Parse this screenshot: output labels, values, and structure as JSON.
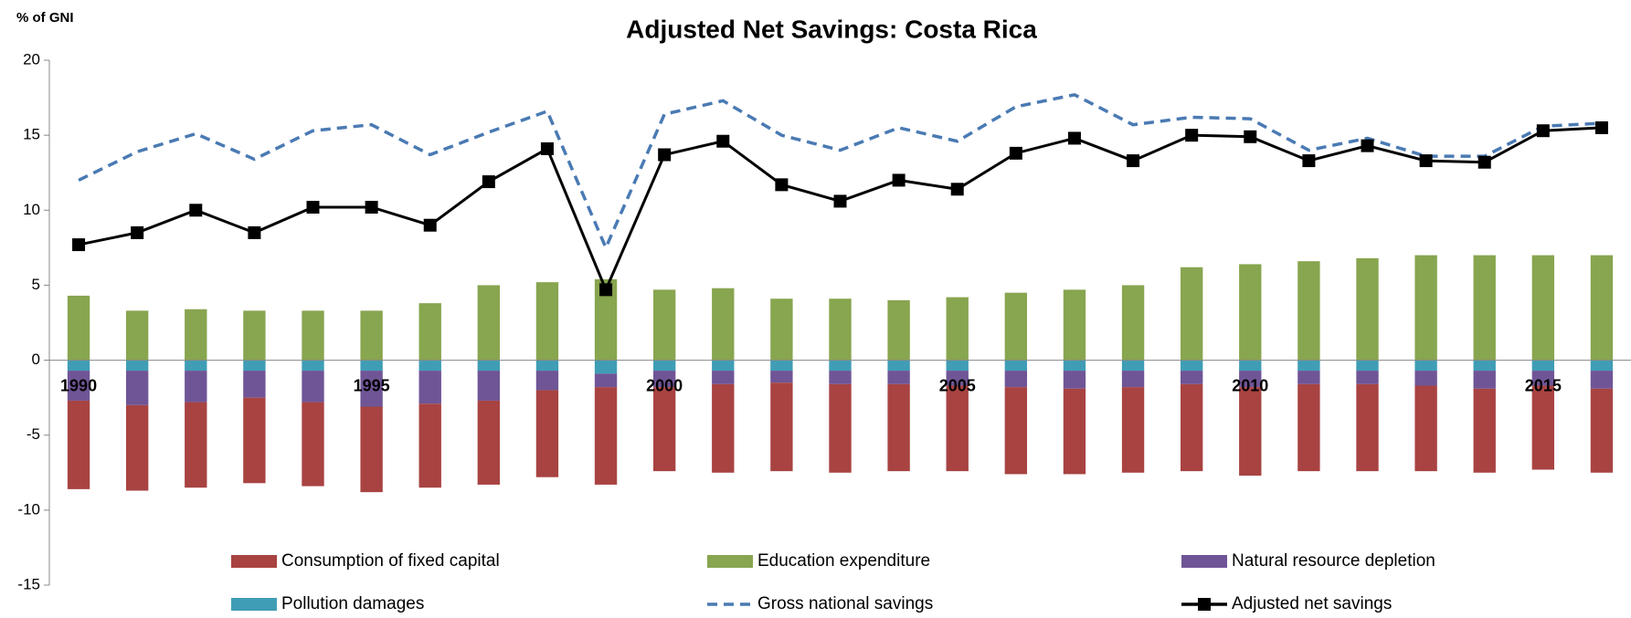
{
  "chart_data": {
    "type": "bar",
    "title": "Adjusted Net Savings: Costa Rica",
    "y_label": "% of GNI",
    "categories": [
      "1990",
      null,
      null,
      null,
      null,
      "1995",
      null,
      null,
      null,
      null,
      "2000",
      null,
      null,
      null,
      null,
      "2005",
      null,
      null,
      null,
      null,
      "2010",
      null,
      null,
      null,
      null,
      "2015",
      null
    ],
    "ylim": [
      -15,
      20
    ],
    "yticks": [
      -15,
      -10,
      -5,
      0,
      5,
      10,
      15,
      20
    ],
    "grid": false,
    "legend": "bottom",
    "series": [
      {
        "name": "Consumption of fixed capital",
        "type": "bar",
        "color": "#a84342",
        "values": [
          -5.9,
          -5.7,
          -5.7,
          -5.7,
          -5.6,
          -5.7,
          -5.6,
          -5.6,
          -5.8,
          -6.5,
          -5.6,
          -5.9,
          -5.9,
          -5.9,
          -5.8,
          -5.7,
          -5.8,
          -5.7,
          -5.7,
          -5.8,
          -5.9,
          -5.8,
          -5.8,
          -5.7,
          -5.6,
          -5.6,
          -5.6
        ]
      },
      {
        "name": "Education expenditure",
        "type": "bar",
        "color": "#88a54f",
        "values": [
          4.3,
          3.3,
          3.4,
          3.3,
          3.3,
          3.3,
          3.8,
          5.0,
          5.2,
          5.4,
          4.7,
          4.8,
          4.1,
          4.1,
          4.0,
          4.2,
          4.5,
          4.7,
          5.0,
          6.2,
          6.4,
          6.6,
          6.8,
          7.0,
          7.0,
          7.0,
          7.0
        ]
      },
      {
        "name": "Natural resource depletion",
        "type": "bar",
        "color": "#6f5596",
        "values": [
          -2.0,
          -2.3,
          -2.1,
          -1.8,
          -2.1,
          -2.4,
          -2.2,
          -2.0,
          -1.3,
          -0.9,
          -1.1,
          -0.9,
          -0.8,
          -0.9,
          -0.9,
          -1.0,
          -1.1,
          -1.2,
          -1.1,
          -0.9,
          -1.1,
          -0.9,
          -0.9,
          -1.0,
          -1.2,
          -1.0,
          -1.2
        ]
      },
      {
        "name": "Pollution damages",
        "type": "bar",
        "color": "#3f9db5",
        "values": [
          -0.7,
          -0.7,
          -0.7,
          -0.7,
          -0.7,
          -0.7,
          -0.7,
          -0.7,
          -0.7,
          -0.9,
          -0.7,
          -0.7,
          -0.7,
          -0.7,
          -0.7,
          -0.7,
          -0.7,
          -0.7,
          -0.7,
          -0.7,
          -0.7,
          -0.7,
          -0.7,
          -0.7,
          -0.7,
          -0.7,
          -0.7
        ]
      },
      {
        "name": "Gross national savings",
        "type": "line",
        "style": "dashed",
        "color": "#4a7ab3",
        "values": [
          12.0,
          13.9,
          15.1,
          13.4,
          15.3,
          15.7,
          13.7,
          15.2,
          16.6,
          7.5,
          16.4,
          17.3,
          15.0,
          14.0,
          15.5,
          14.6,
          16.9,
          17.7,
          15.7,
          16.2,
          16.1,
          14.0,
          14.8,
          13.6,
          13.6,
          15.6,
          15.8
        ]
      },
      {
        "name": "Adjusted net savings",
        "type": "line",
        "style": "solid",
        "marker": "square",
        "color": "#000000",
        "values": [
          7.7,
          8.5,
          10.0,
          8.5,
          10.2,
          10.2,
          9.0,
          11.9,
          14.1,
          4.7,
          13.7,
          14.6,
          11.7,
          10.6,
          12.0,
          11.4,
          13.8,
          14.8,
          13.3,
          15.0,
          14.9,
          13.3,
          14.3,
          13.3,
          13.2,
          15.3,
          15.5
        ]
      }
    ]
  }
}
